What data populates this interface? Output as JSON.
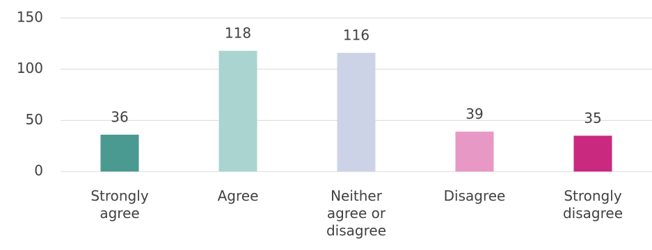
{
  "chart_data": {
    "type": "bar",
    "categories": [
      "Strongly agree",
      "Agree",
      "Neither agree or disagree",
      "Disagree",
      "Strongly disagree"
    ],
    "values": [
      36,
      118,
      116,
      39,
      35
    ],
    "colors": [
      "#4a9a91",
      "#aad4d0",
      "#cdd3e6",
      "#e898c4",
      "#c9297f"
    ],
    "ylim": [
      0,
      150
    ],
    "yticks": [
      0,
      50,
      100,
      150
    ],
    "grid": true
  }
}
